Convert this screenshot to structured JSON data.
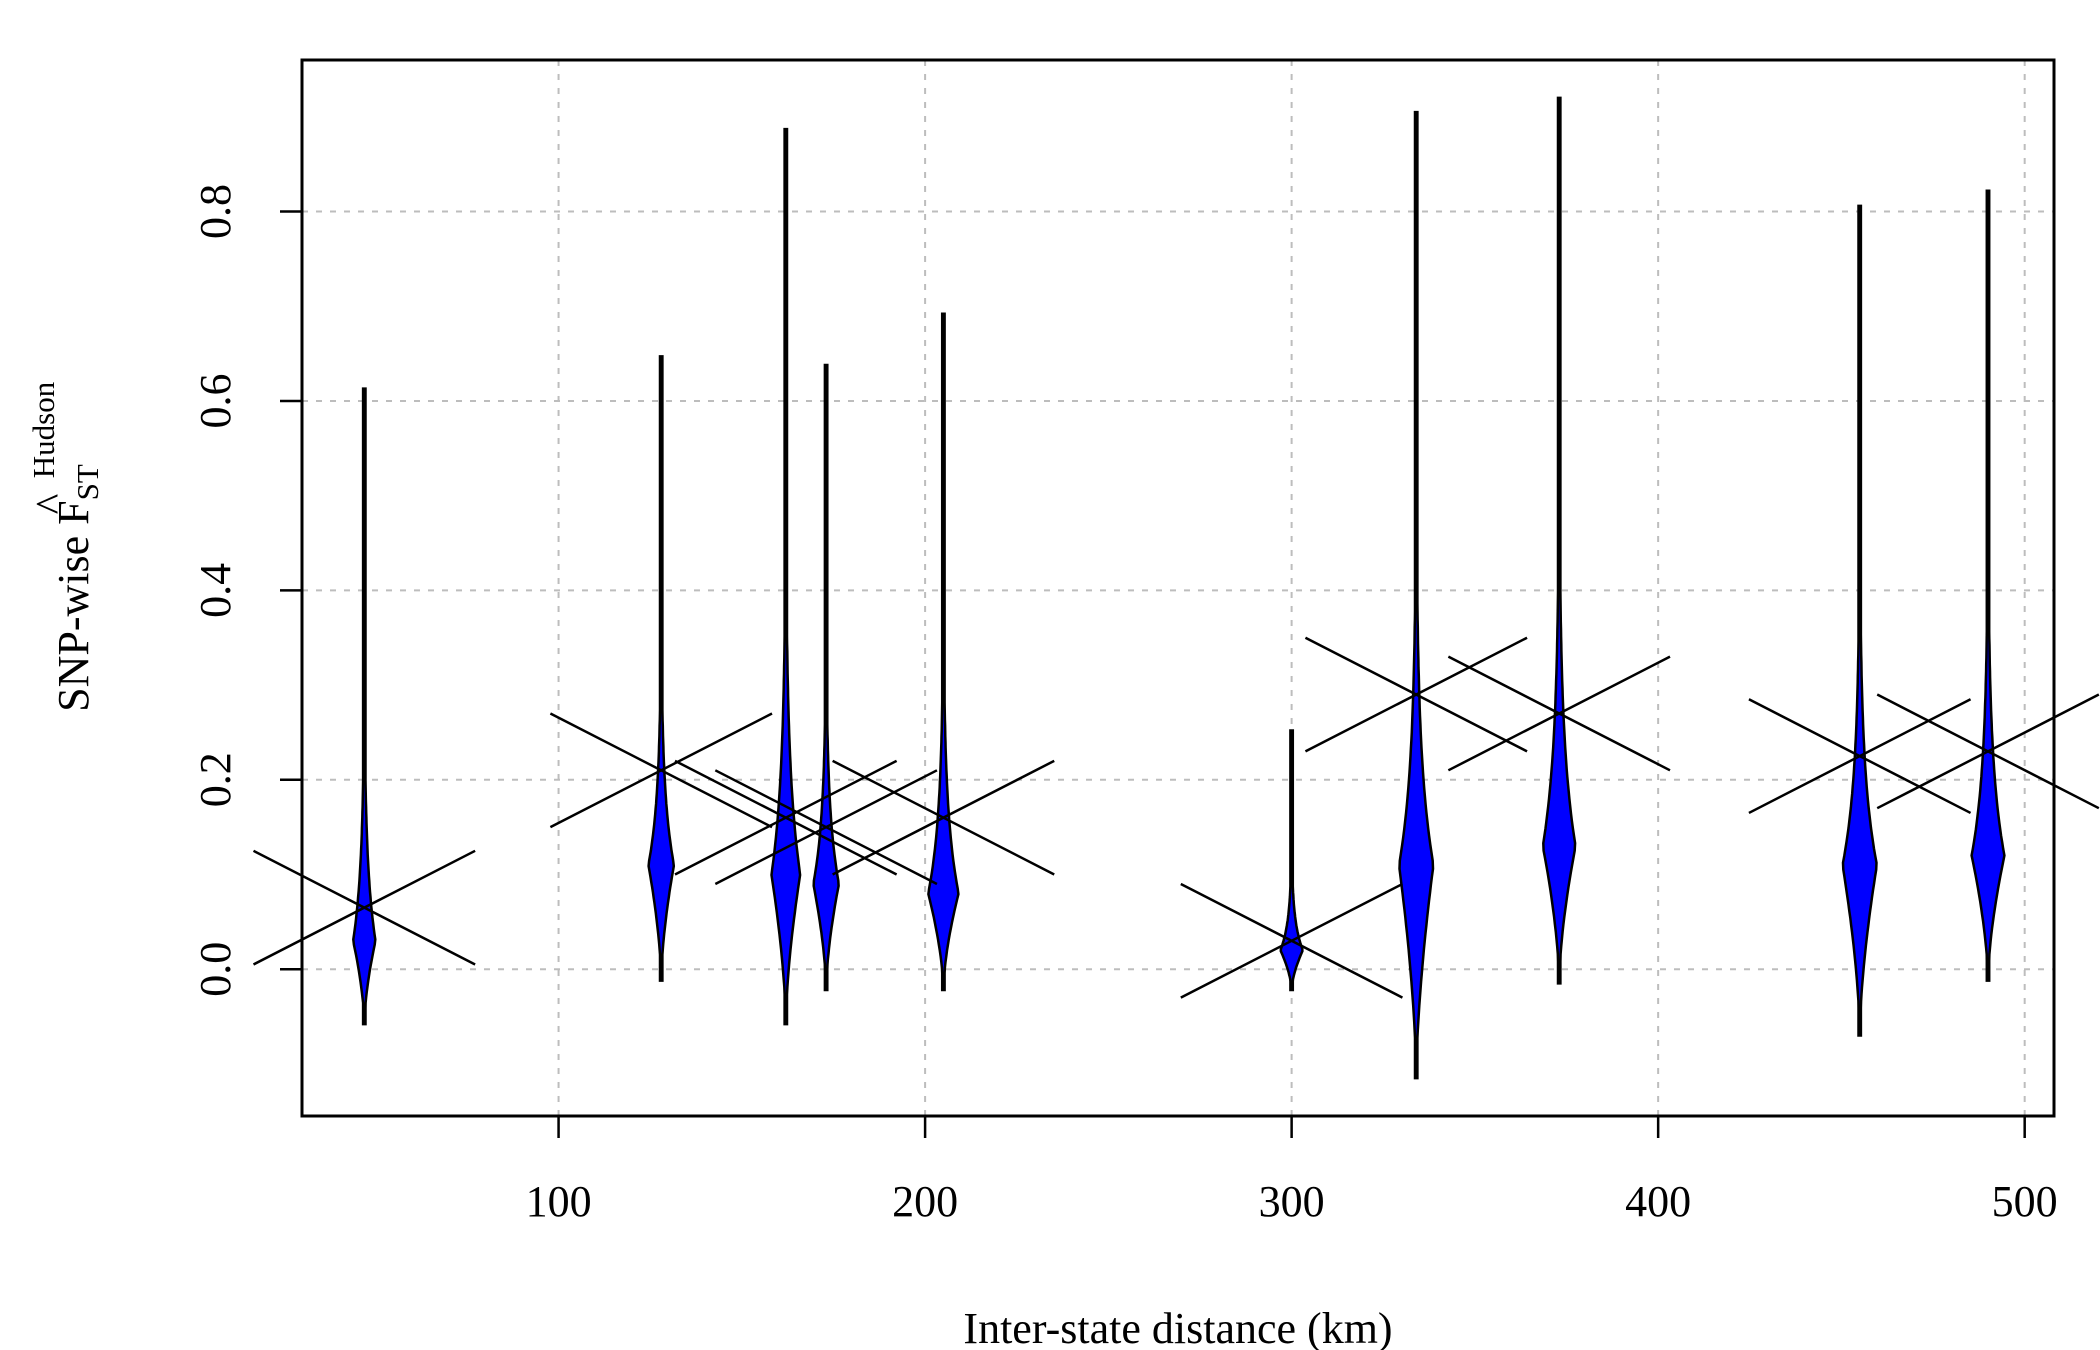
{
  "chart_data": {
    "type": "violin",
    "xlabel": "Inter-state distance (km)",
    "ylabel": {
      "prefix": "SNP-wise ",
      "symbol": "F",
      "hat": "^",
      "subscript": "ST",
      "superscript": "Hudson"
    },
    "xlim": [
      30,
      508
    ],
    "ylim": [
      -0.155,
      0.96
    ],
    "x_ticks": [
      100,
      200,
      300,
      400,
      500
    ],
    "y_ticks": [
      0.0,
      0.2,
      0.4,
      0.6,
      0.8
    ],
    "x_tick_labels": [
      "100",
      "200",
      "300",
      "400",
      "500"
    ],
    "y_tick_labels": [
      "0.0",
      "0.2",
      "0.4",
      "0.6",
      "0.8"
    ],
    "grid": true,
    "violin_color": "#0000ff",
    "series": [
      {
        "x": 47,
        "min": -0.058,
        "max": 0.613,
        "mode": 0.03,
        "width": 2.8,
        "cross": 0.065
      },
      {
        "x": 128,
        "min": -0.012,
        "max": 0.647,
        "mode": 0.11,
        "width": 3.2,
        "cross": 0.21
      },
      {
        "x": 162,
        "min": -0.058,
        "max": 0.887,
        "mode": 0.1,
        "width": 3.6,
        "cross": 0.16
      },
      {
        "x": 173,
        "min": -0.022,
        "max": 0.638,
        "mode": 0.09,
        "width": 3.2,
        "cross": 0.15
      },
      {
        "x": 205,
        "min": -0.022,
        "max": 0.692,
        "mode": 0.08,
        "width": 3.8,
        "cross": 0.16
      },
      {
        "x": 300,
        "min": -0.022,
        "max": 0.252,
        "mode": 0.02,
        "width": 2.8,
        "cross": 0.03
      },
      {
        "x": 334,
        "min": -0.115,
        "max": 0.905,
        "mode": 0.11,
        "width": 4.3,
        "cross": 0.29
      },
      {
        "x": 373,
        "min": -0.015,
        "max": 0.92,
        "mode": 0.13,
        "width": 4.1,
        "cross": 0.27
      },
      {
        "x": 455,
        "min": -0.07,
        "max": 0.806,
        "mode": 0.11,
        "width": 4.3,
        "cross": 0.225
      },
      {
        "x": 490,
        "min": -0.012,
        "max": 0.822,
        "mode": 0.12,
        "width": 4.1,
        "cross": 0.23
      }
    ]
  }
}
